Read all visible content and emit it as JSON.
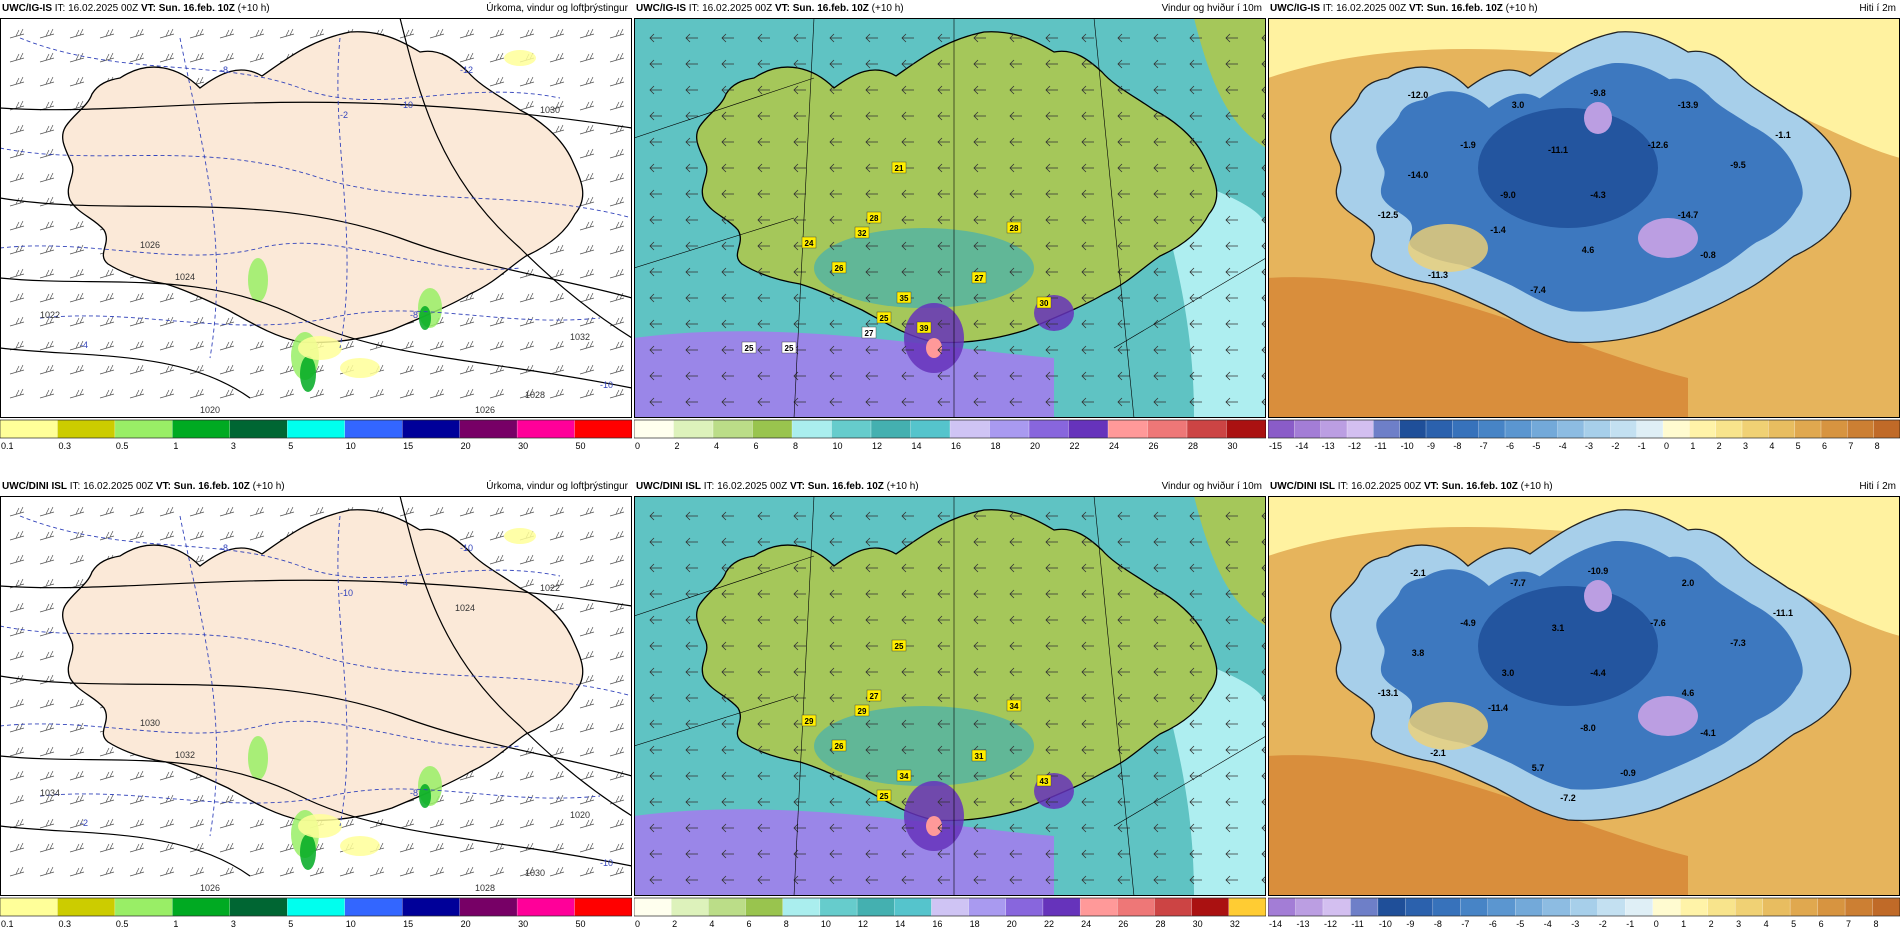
{
  "panels": [
    {
      "id": "top-precip",
      "model": "UWC/IG-IS",
      "it_label": "IT:",
      "it": "16.02.2025 00Z",
      "vt_label": "VT:",
      "vt": "Sun. 16.feb. 10Z",
      "lead": "(+10 h)",
      "title": "Úrkoma, vindur og loftþrýstingur",
      "kind": "precip",
      "isobars": [
        "1026",
        "1024",
        "1022",
        "1020",
        "1030",
        "1032",
        "1028",
        "1026"
      ],
      "temps": [
        "-12",
        "-8",
        "-10",
        "-4",
        "-2",
        "-8",
        "-10"
      ],
      "legend": {
        "labels": [
          "0.1",
          "0.3",
          "0.5",
          "1",
          "3",
          "5",
          "10",
          "15",
          "20",
          "30",
          "50"
        ],
        "colors": [
          "#ffff99",
          "#cccc00",
          "#99ee66",
          "#00aa22",
          "#006633",
          "#00ffee",
          "#3366ff",
          "#000099",
          "#770066",
          "#ff0099",
          "#ff0000"
        ]
      }
    },
    {
      "id": "top-wind",
      "model": "UWC/IG-IS",
      "it_label": "IT:",
      "it": "16.02.2025 00Z",
      "vt_label": "VT:",
      "vt": "Sun. 16.feb. 10Z",
      "lead": "(+10 h)",
      "title": "Vindur og hviður í 10m",
      "kind": "wind",
      "badges": [
        "21",
        "28",
        "32",
        "24",
        "26",
        "28",
        "27",
        "35",
        "30",
        "25",
        "39",
        "27",
        "25",
        "25"
      ],
      "legend": {
        "labels": [
          "0",
          "2",
          "4",
          "6",
          "8",
          "10",
          "12",
          "14",
          "16",
          "18",
          "20",
          "22",
          "24",
          "26",
          "28",
          "30"
        ],
        "colors": [
          "#ffffee",
          "#ddf2bb",
          "#bbdd88",
          "#99c44e",
          "#aaeeee",
          "#66cccc",
          "#44b0b0",
          "#55c4cc",
          "#cfc4f4",
          "#a99af0",
          "#8866dd",
          "#6633bb",
          "#ff9999",
          "#ee7777",
          "#cc4444",
          "#aa1111"
        ]
      }
    },
    {
      "id": "top-temp",
      "model": "UWC/IG-IS",
      "it_label": "IT:",
      "it": "16.02.2025 00Z",
      "vt_label": "VT:",
      "vt": "Sun. 16.feb. 10Z",
      "lead": "(+10 h)",
      "title": "Hiti í 2m",
      "kind": "temp",
      "values": [
        "-12.0",
        "3.0",
        "-9.8",
        "-13.9",
        "-1.1",
        "-1.9",
        "-11.1",
        "-12.6",
        "-9.5",
        "-14.0",
        "-9.0",
        "-4.3",
        "-14.7",
        "-12.5",
        "-1.4",
        "4.6",
        "-0.8",
        "-11.3",
        "-7.4"
      ],
      "legend": {
        "labels": [
          "-15",
          "-14",
          "-13",
          "-12",
          "-11",
          "-10",
          "-9",
          "-8",
          "-7",
          "-6",
          "-5",
          "-4",
          "-3",
          "-2",
          "-1",
          "0",
          "1",
          "2",
          "3",
          "4",
          "5",
          "6",
          "7",
          "8"
        ],
        "colors": [
          "#8a5cc8",
          "#a37dd6",
          "#bb9ee2",
          "#d3bff0",
          "#6e7fc8",
          "#1f4f99",
          "#2b61ad",
          "#3772bb",
          "#4784c6",
          "#5b96d0",
          "#73a9d9",
          "#8dbce2",
          "#a7cfea",
          "#c3e0f1",
          "#dfeff6",
          "#fffbd0",
          "#fff3a8",
          "#f8e48c",
          "#f0d174",
          "#e8bd60",
          "#e0a84f",
          "#d79440",
          "#cc7f33",
          "#c06a28"
        ]
      }
    },
    {
      "id": "bottom-precip",
      "model": "UWC/DINI ISL",
      "it_label": "IT:",
      "it": "16.02.2025 00Z",
      "vt_label": "VT:",
      "vt": "Sun. 16.feb. 10Z",
      "lead": "(+10 h)",
      "title": "Úrkoma, vindur og loftþrýstingur",
      "kind": "precip",
      "isobars": [
        "1030",
        "1032",
        "1034",
        "1026",
        "1022",
        "1020",
        "1030",
        "1028",
        "1024"
      ],
      "temps": [
        "-10",
        "-8",
        "-4",
        "-2",
        "-10",
        "-8",
        "-10"
      ],
      "legend": {
        "labels": [
          "0.1",
          "0.3",
          "0.5",
          "1",
          "3",
          "5",
          "10",
          "15",
          "20",
          "30",
          "50"
        ],
        "colors": [
          "#ffff99",
          "#cccc00",
          "#99ee66",
          "#00aa22",
          "#006633",
          "#00ffee",
          "#3366ff",
          "#000099",
          "#770066",
          "#ff0099",
          "#ff0000"
        ]
      }
    },
    {
      "id": "bottom-wind",
      "model": "UWC/DINI ISL",
      "it_label": "IT:",
      "it": "16.02.2025 00Z",
      "vt_label": "VT:",
      "vt": "Sun. 16.feb. 10Z",
      "lead": "(+10 h)",
      "title": "Vindur og hviður í 10m",
      "kind": "wind",
      "badges": [
        "25",
        "27",
        "29",
        "29",
        "26",
        "34",
        "31",
        "34",
        "43",
        "25"
      ],
      "legend": {
        "labels": [
          "0",
          "2",
          "4",
          "6",
          "8",
          "10",
          "12",
          "14",
          "16",
          "18",
          "20",
          "22",
          "24",
          "26",
          "28",
          "30",
          "32"
        ],
        "colors": [
          "#ffffee",
          "#ddf2bb",
          "#bbdd88",
          "#99c44e",
          "#aaeeee",
          "#66cccc",
          "#44b0b0",
          "#55c4cc",
          "#cfc4f4",
          "#a99af0",
          "#8866dd",
          "#6633bb",
          "#ff9999",
          "#ee7777",
          "#cc4444",
          "#aa1111",
          "#ffcc33"
        ]
      }
    },
    {
      "id": "bottom-temp",
      "model": "UWC/DINI ISL",
      "it_label": "IT:",
      "it": "16.02.2025 00Z",
      "vt_label": "VT:",
      "vt": "Sun. 16.feb. 10Z",
      "lead": "(+10 h)",
      "title": "Hiti í 2m",
      "kind": "temp",
      "values": [
        "-2.1",
        "-7.7",
        "-10.9",
        "2.0",
        "-11.1",
        "-4.9",
        "3.1",
        "-7.6",
        "-7.3",
        "3.8",
        "3.0",
        "-4.4",
        "4.6",
        "-13.1",
        "-11.4",
        "-8.0",
        "-4.1",
        "-2.1",
        "5.7",
        "-0.9",
        "-7.2"
      ],
      "legend": {
        "labels": [
          "-14",
          "-13",
          "-12",
          "-11",
          "-10",
          "-9",
          "-8",
          "-7",
          "-6",
          "-5",
          "-4",
          "-3",
          "-2",
          "-1",
          "0",
          "1",
          "2",
          "3",
          "4",
          "5",
          "6",
          "7",
          "8"
        ],
        "colors": [
          "#a37dd6",
          "#bb9ee2",
          "#d3bff0",
          "#6e7fc8",
          "#1f4f99",
          "#2b61ad",
          "#3772bb",
          "#4784c6",
          "#5b96d0",
          "#73a9d9",
          "#8dbce2",
          "#a7cfea",
          "#c3e0f1",
          "#dfeff6",
          "#fffbd0",
          "#fff3a8",
          "#f8e48c",
          "#f0d174",
          "#e8bd60",
          "#e0a84f",
          "#d79440",
          "#cc7f33",
          "#c06a28"
        ]
      }
    }
  ],
  "colors": {
    "land_precip": "#fbe9d8",
    "sea_precip": "#ffffff",
    "sea_wind": "#5fc3c3",
    "land_wind": "#a5c75a",
    "sea_temp": "#e6b45c",
    "land_temp": "#3d78bf",
    "isobar": "#000000",
    "isotherm": "#3344bb"
  }
}
